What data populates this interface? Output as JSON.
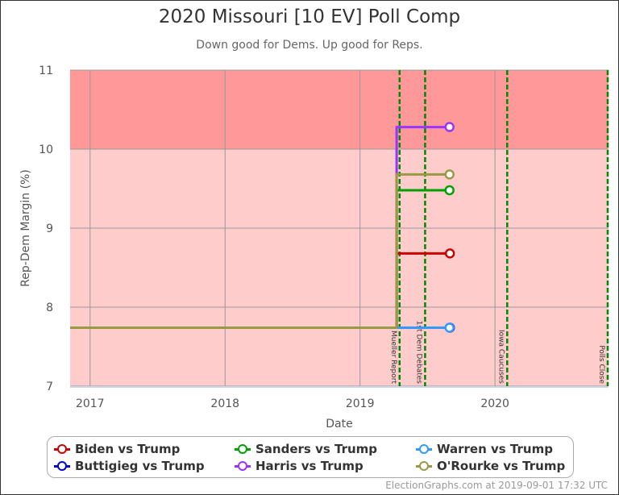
{
  "chart_data": {
    "type": "line",
    "title": "2020 Missouri [10 EV] Poll Comp",
    "subtitle": "Down good for Dems. Up good for Reps.",
    "xlabel": "Date",
    "ylabel": "Rep-Dem Margin (%)",
    "xlim": [
      "2016-11-08",
      "2020-11-03"
    ],
    "ylim": [
      7,
      11
    ],
    "x_ticks": [
      "2017",
      "2018",
      "2019",
      "2020"
    ],
    "y_ticks": [
      7,
      8,
      9,
      10,
      11
    ],
    "grid": true,
    "bands": [
      {
        "from": 10,
        "to": 11,
        "color": "#ff9999"
      },
      {
        "from": 7,
        "to": 10,
        "color": "#ffcccc"
      }
    ],
    "events": [
      {
        "label": "Mueller Report",
        "date": "2019-04-18"
      },
      {
        "label": "1st Dem Debates",
        "date": "2019-06-26"
      },
      {
        "label": "Iowa Caucuses",
        "date": "2020-02-03"
      },
      {
        "label": "Polls Close",
        "date": "2020-11-03"
      }
    ],
    "event_color": "#008800",
    "legend_position": "bottom",
    "series": [
      {
        "name": "Biden vs Trump",
        "color": "#cc0000",
        "points": [
          [
            "2016-11-08",
            7.74
          ],
          [
            "2019-04-10",
            7.74
          ],
          [
            "2019-04-10",
            8.68
          ],
          [
            "2019-09-01",
            8.68
          ]
        ]
      },
      {
        "name": "Buttigieg vs Trump",
        "color": "#0000cc",
        "points": [
          [
            "2016-11-08",
            7.74
          ],
          [
            "2019-09-01",
            7.74
          ]
        ]
      },
      {
        "name": "Sanders vs Trump",
        "color": "#00a000",
        "points": [
          [
            "2016-11-08",
            7.74
          ],
          [
            "2019-04-10",
            7.74
          ],
          [
            "2019-04-10",
            9.48
          ],
          [
            "2019-08-31",
            9.48
          ]
        ]
      },
      {
        "name": "Harris vs Trump",
        "color": "#9933ff",
        "points": [
          [
            "2016-11-08",
            7.74
          ],
          [
            "2019-04-10",
            7.74
          ],
          [
            "2019-04-10",
            10.28
          ],
          [
            "2019-08-31",
            10.28
          ]
        ]
      },
      {
        "name": "Warren vs Trump",
        "color": "#3399ff",
        "points": [
          [
            "2016-11-08",
            7.74
          ],
          [
            "2019-08-31",
            7.74
          ]
        ]
      },
      {
        "name": "O'Rourke vs Trump",
        "color": "#999944",
        "points": [
          [
            "2016-11-08",
            7.74
          ],
          [
            "2019-04-10",
            7.74
          ],
          [
            "2019-04-10",
            9.68
          ],
          [
            "2019-08-31",
            9.68
          ]
        ]
      }
    ]
  },
  "footer": "ElectionGraphs.com at 2019-09-01 17:32 UTC"
}
